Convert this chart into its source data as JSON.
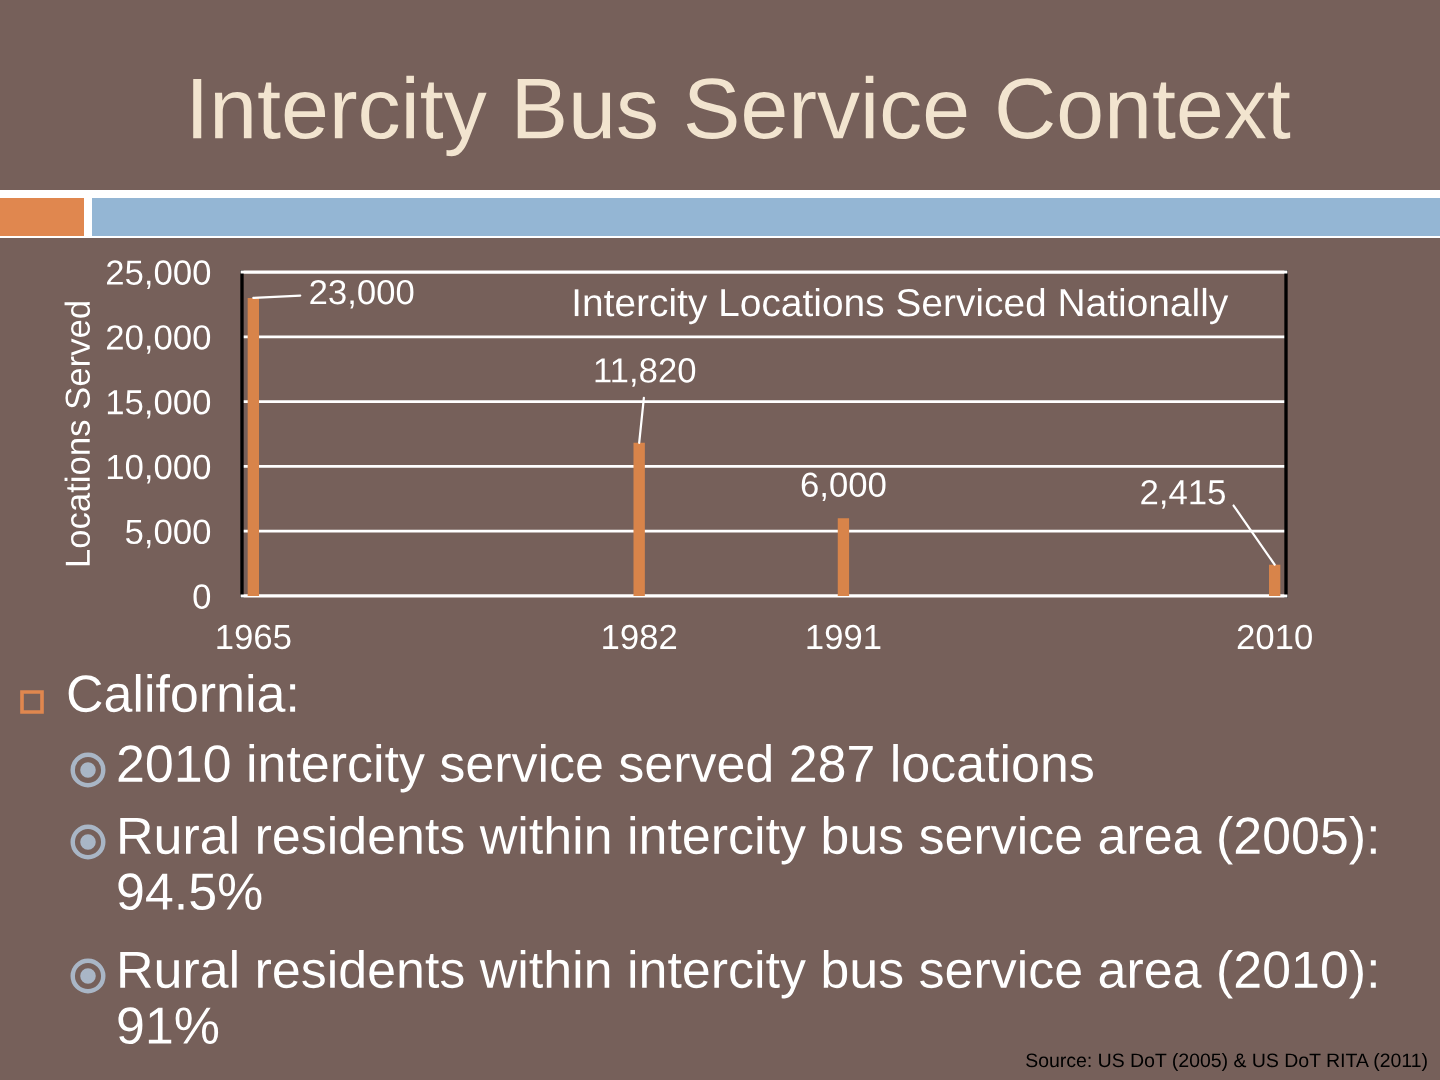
{
  "chart_data": {
    "type": "bar",
    "title": "Intercity Bus Service Context",
    "subtitle": "Intercity Locations Serviced Nationally",
    "ylabel": "Locations Served",
    "x": [
      1965,
      1982,
      1991,
      2010
    ],
    "values": [
      23000,
      11820,
      6000,
      2415
    ],
    "value_labels": [
      "23,000",
      "11,820",
      "6,000",
      "2,415"
    ],
    "color": "#d8844a",
    "xlim": [
      1964.5,
      2010.5
    ],
    "xticks": [
      1965,
      1982,
      1991,
      2010
    ],
    "ylim": [
      0,
      25000
    ],
    "yticks": [
      0,
      {
        "value": 5000,
        "label": "5,000"
      },
      {
        "value": 10000,
        "label": "10,000"
      },
      {
        "value": 15000,
        "label": "15,000"
      },
      {
        "value": 20000,
        "label": "20,000"
      },
      {
        "value": 25000,
        "label": "25,000"
      }
    ],
    "grid": "y",
    "annotations": [
      "California:",
      "2010 intercity service served 287 locations",
      "Rural residents within intercity bus service area (2005): 94.5%",
      "Rural residents within intercity bus service area (2010): 91%",
      "Source: US DoT (2005) & US DoT RITA (2011)"
    ]
  }
}
